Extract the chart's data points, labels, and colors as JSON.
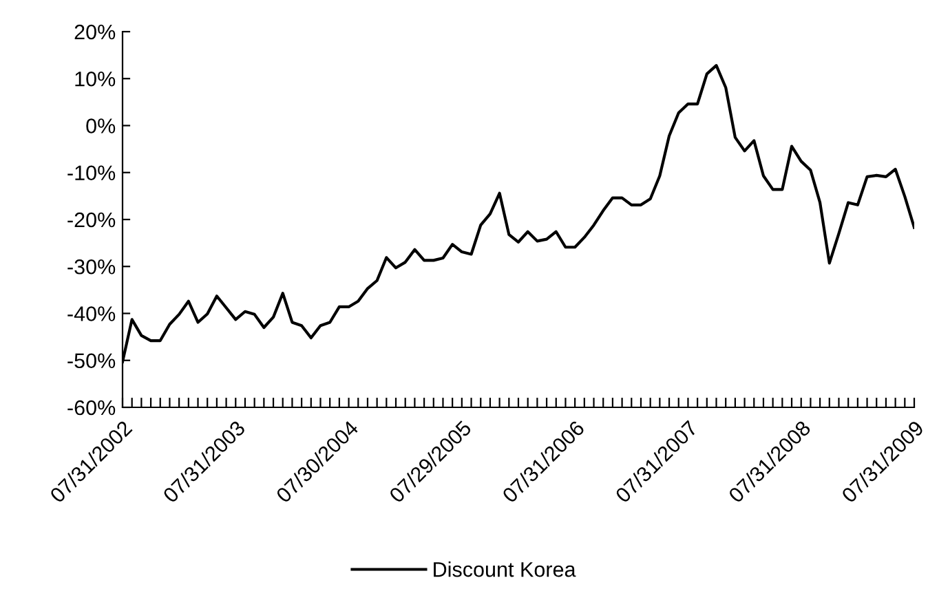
{
  "chart_data": {
    "type": "line",
    "categories": [
      "07/31/2002",
      null,
      null,
      null,
      null,
      null,
      null,
      null,
      null,
      null,
      null,
      null,
      "07/31/2003",
      null,
      null,
      null,
      null,
      null,
      null,
      null,
      null,
      null,
      null,
      null,
      "07/30/2004",
      null,
      null,
      null,
      null,
      null,
      null,
      null,
      null,
      null,
      null,
      null,
      "07/29/2005",
      null,
      null,
      null,
      null,
      null,
      null,
      null,
      null,
      null,
      null,
      null,
      "07/31/2006",
      null,
      null,
      null,
      null,
      null,
      null,
      null,
      null,
      null,
      null,
      null,
      "07/31/2007",
      null,
      null,
      null,
      null,
      null,
      null,
      null,
      null,
      null,
      null,
      null,
      "07/31/2008",
      null,
      null,
      null,
      null,
      null,
      null,
      null,
      null,
      null,
      null,
      null,
      "07/31/2009"
    ],
    "series": [
      {
        "name": "Discount Korea",
        "color": "#000000",
        "values": [
          -50.3,
          -41.3,
          -44.7,
          -45.8,
          -45.8,
          -42.3,
          -40.2,
          -37.4,
          -41.9,
          -40.1,
          -36.3,
          -38.8,
          -41.3,
          -39.6,
          -40.2,
          -43.0,
          -40.8,
          -35.7,
          -41.9,
          -42.6,
          -45.2,
          -42.6,
          -41.9,
          -38.6,
          -38.6,
          -37.4,
          -34.7,
          -33.0,
          -28.1,
          -30.3,
          -29.1,
          -26.4,
          -28.7,
          -28.7,
          -28.2,
          -25.3,
          -26.9,
          -27.4,
          -21.2,
          -18.8,
          -14.4,
          -23.2,
          -24.8,
          -22.6,
          -24.6,
          -24.2,
          -22.6,
          -25.9,
          -25.9,
          -23.8,
          -21.2,
          -18.1,
          -15.4,
          -15.4,
          -16.9,
          -16.9,
          -15.6,
          -10.7,
          -2.2,
          2.7,
          4.6,
          4.6,
          11.0,
          12.8,
          8.1,
          -2.5,
          -5.4,
          -3.2,
          -10.7,
          -13.6,
          -13.6,
          -4.4,
          -7.6,
          -9.5,
          -16.4,
          -29.3,
          -23.0,
          -16.4,
          -16.9,
          -10.9,
          -10.6,
          -10.9,
          -9.3,
          -15.1,
          -21.7
        ]
      }
    ],
    "ylim": [
      -60,
      20
    ],
    "yticks": [
      {
        "value": -60,
        "label": "-60%"
      },
      {
        "value": -50,
        "label": "-50%"
      },
      {
        "value": -40,
        "label": "-40%"
      },
      {
        "value": -30,
        "label": "-30%"
      },
      {
        "value": -20,
        "label": "-20%"
      },
      {
        "value": -10,
        "label": "-10%"
      },
      {
        "value": 0,
        "label": "0%"
      },
      {
        "value": 10,
        "label": "10%"
      },
      {
        "value": 20,
        "label": "20%"
      }
    ],
    "grid": false,
    "legend": "bottom",
    "marker": "none",
    "line_style": "solid"
  }
}
